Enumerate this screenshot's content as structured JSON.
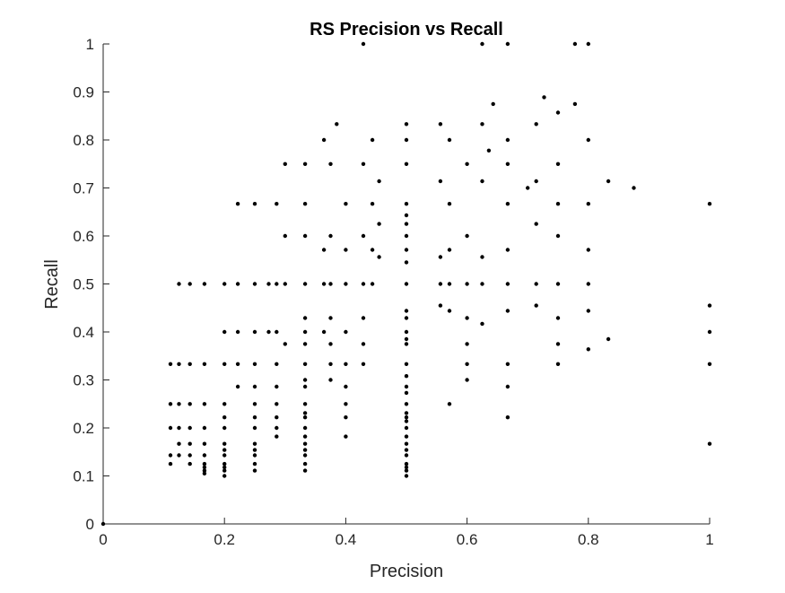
{
  "chart_data": {
    "type": "scatter",
    "title": "RS Precision vs Recall",
    "xlabel": "Precision",
    "ylabel": "Recall",
    "xlim": [
      0,
      1
    ],
    "ylim": [
      0,
      1
    ],
    "grid": false,
    "legend": "none",
    "marker_color": "#000000",
    "x_ticks": [
      0,
      0.2,
      0.4,
      0.6,
      0.8,
      1
    ],
    "x_tick_labels": [
      "0",
      "0.2",
      "0.4",
      "0.6",
      "0.8",
      "1"
    ],
    "y_ticks": [
      0,
      0.1,
      0.2,
      0.3,
      0.4,
      0.5,
      0.6,
      0.7,
      0.8,
      0.9,
      1
    ],
    "y_tick_labels": [
      "0",
      "0.1",
      "0.2",
      "0.3",
      "0.4",
      "0.5",
      "0.6",
      "0.7",
      "0.8",
      "0.9",
      "1"
    ],
    "points": [
      [
        0,
        0
      ],
      [
        0.429,
        1
      ],
      [
        0.625,
        1
      ],
      [
        0.667,
        1
      ],
      [
        0.778,
        1
      ],
      [
        0.8,
        1
      ],
      [
        0.727,
        0.889
      ],
      [
        0.643,
        0.875
      ],
      [
        0.778,
        0.875
      ],
      [
        0.75,
        0.857
      ],
      [
        0.385,
        0.833
      ],
      [
        0.5,
        0.833
      ],
      [
        0.556,
        0.833
      ],
      [
        0.625,
        0.833
      ],
      [
        0.714,
        0.833
      ],
      [
        0.364,
        0.8
      ],
      [
        0.444,
        0.8
      ],
      [
        0.5,
        0.8
      ],
      [
        0.571,
        0.8
      ],
      [
        0.667,
        0.8
      ],
      [
        0.8,
        0.8
      ],
      [
        0.636,
        0.778
      ],
      [
        0.3,
        0.75
      ],
      [
        0.333,
        0.75
      ],
      [
        0.375,
        0.75
      ],
      [
        0.429,
        0.75
      ],
      [
        0.5,
        0.75
      ],
      [
        0.6,
        0.75
      ],
      [
        0.667,
        0.75
      ],
      [
        0.75,
        0.75
      ],
      [
        0.455,
        0.714
      ],
      [
        0.556,
        0.714
      ],
      [
        0.625,
        0.714
      ],
      [
        0.714,
        0.714
      ],
      [
        0.833,
        0.714
      ],
      [
        0.875,
        0.7
      ],
      [
        0.7,
        0.7
      ],
      [
        0.222,
        0.667
      ],
      [
        0.25,
        0.667
      ],
      [
        0.286,
        0.667
      ],
      [
        0.333,
        0.667
      ],
      [
        0.4,
        0.667
      ],
      [
        0.444,
        0.667
      ],
      [
        0.5,
        0.667
      ],
      [
        0.571,
        0.667
      ],
      [
        0.667,
        0.667
      ],
      [
        0.75,
        0.667
      ],
      [
        0.8,
        0.667
      ],
      [
        1,
        0.667
      ],
      [
        0.5,
        0.643
      ],
      [
        0.714,
        0.625
      ],
      [
        0.455,
        0.625
      ],
      [
        0.5,
        0.625
      ],
      [
        0.3,
        0.6
      ],
      [
        0.333,
        0.6
      ],
      [
        0.375,
        0.6
      ],
      [
        0.429,
        0.6
      ],
      [
        0.5,
        0.6
      ],
      [
        0.6,
        0.6
      ],
      [
        0.75,
        0.6
      ],
      [
        0.364,
        0.571
      ],
      [
        0.4,
        0.571
      ],
      [
        0.444,
        0.571
      ],
      [
        0.5,
        0.571
      ],
      [
        0.571,
        0.571
      ],
      [
        0.667,
        0.571
      ],
      [
        0.8,
        0.571
      ],
      [
        0.455,
        0.556
      ],
      [
        0.556,
        0.556
      ],
      [
        0.625,
        0.556
      ],
      [
        0.5,
        0.545
      ],
      [
        0.125,
        0.5
      ],
      [
        0.143,
        0.5
      ],
      [
        0.167,
        0.5
      ],
      [
        0.2,
        0.5
      ],
      [
        0.222,
        0.5
      ],
      [
        0.25,
        0.5
      ],
      [
        0.273,
        0.5
      ],
      [
        0.286,
        0.5
      ],
      [
        0.3,
        0.5
      ],
      [
        0.333,
        0.5
      ],
      [
        0.364,
        0.5
      ],
      [
        0.375,
        0.5
      ],
      [
        0.4,
        0.5
      ],
      [
        0.429,
        0.5
      ],
      [
        0.444,
        0.5
      ],
      [
        0.5,
        0.5
      ],
      [
        0.556,
        0.5
      ],
      [
        0.571,
        0.5
      ],
      [
        0.6,
        0.5
      ],
      [
        0.625,
        0.5
      ],
      [
        0.667,
        0.5
      ],
      [
        0.714,
        0.5
      ],
      [
        0.75,
        0.5
      ],
      [
        0.8,
        0.5
      ],
      [
        0.556,
        0.455
      ],
      [
        0.714,
        0.455
      ],
      [
        0.8,
        0.444
      ],
      [
        1,
        0.455
      ],
      [
        0.5,
        0.444
      ],
      [
        0.571,
        0.444
      ],
      [
        0.667,
        0.444
      ],
      [
        0.333,
        0.429
      ],
      [
        0.375,
        0.429
      ],
      [
        0.429,
        0.429
      ],
      [
        0.5,
        0.429
      ],
      [
        0.6,
        0.429
      ],
      [
        0.75,
        0.429
      ],
      [
        0.625,
        0.417
      ],
      [
        0.2,
        0.4
      ],
      [
        0.222,
        0.4
      ],
      [
        0.25,
        0.4
      ],
      [
        0.273,
        0.4
      ],
      [
        0.286,
        0.4
      ],
      [
        0.333,
        0.4
      ],
      [
        0.364,
        0.4
      ],
      [
        0.4,
        0.4
      ],
      [
        0.5,
        0.4
      ],
      [
        1,
        0.4
      ],
      [
        0.5,
        0.385
      ],
      [
        0.833,
        0.385
      ],
      [
        0.3,
        0.375
      ],
      [
        0.333,
        0.375
      ],
      [
        0.375,
        0.375
      ],
      [
        0.429,
        0.375
      ],
      [
        0.5,
        0.375
      ],
      [
        0.6,
        0.375
      ],
      [
        0.75,
        0.375
      ],
      [
        0.8,
        0.364
      ],
      [
        0.111,
        0.333
      ],
      [
        0.125,
        0.333
      ],
      [
        0.143,
        0.333
      ],
      [
        0.167,
        0.333
      ],
      [
        0.2,
        0.333
      ],
      [
        0.222,
        0.333
      ],
      [
        0.25,
        0.333
      ],
      [
        0.286,
        0.333
      ],
      [
        0.333,
        0.333
      ],
      [
        0.375,
        0.333
      ],
      [
        0.4,
        0.333
      ],
      [
        0.429,
        0.333
      ],
      [
        0.5,
        0.333
      ],
      [
        0.6,
        0.333
      ],
      [
        0.667,
        0.333
      ],
      [
        0.75,
        0.333
      ],
      [
        1,
        0.333
      ],
      [
        0.5,
        0.308
      ],
      [
        0.6,
        0.3
      ],
      [
        0.375,
        0.3
      ],
      [
        0.333,
        0.3
      ],
      [
        0.222,
        0.286
      ],
      [
        0.25,
        0.286
      ],
      [
        0.286,
        0.286
      ],
      [
        0.333,
        0.286
      ],
      [
        0.4,
        0.286
      ],
      [
        0.5,
        0.286
      ],
      [
        0.667,
        0.286
      ],
      [
        0.5,
        0.273
      ],
      [
        0.111,
        0.25
      ],
      [
        0.125,
        0.25
      ],
      [
        0.143,
        0.25
      ],
      [
        0.167,
        0.25
      ],
      [
        0.2,
        0.25
      ],
      [
        0.25,
        0.25
      ],
      [
        0.286,
        0.25
      ],
      [
        0.333,
        0.25
      ],
      [
        0.4,
        0.25
      ],
      [
        0.5,
        0.25
      ],
      [
        0.571,
        0.25
      ],
      [
        0.667,
        0.222
      ],
      [
        0.333,
        0.231
      ],
      [
        0.5,
        0.231
      ],
      [
        0.2,
        0.222
      ],
      [
        0.25,
        0.222
      ],
      [
        0.286,
        0.222
      ],
      [
        0.333,
        0.222
      ],
      [
        0.4,
        0.222
      ],
      [
        0.5,
        0.222
      ],
      [
        0.5,
        0.214
      ],
      [
        0.111,
        0.2
      ],
      [
        0.125,
        0.2
      ],
      [
        0.143,
        0.2
      ],
      [
        0.167,
        0.2
      ],
      [
        0.2,
        0.2
      ],
      [
        0.25,
        0.2
      ],
      [
        0.286,
        0.2
      ],
      [
        0.333,
        0.2
      ],
      [
        0.5,
        0.2
      ],
      [
        0.333,
        0.182
      ],
      [
        0.4,
        0.182
      ],
      [
        0.286,
        0.182
      ],
      [
        0.5,
        0.182
      ],
      [
        0.125,
        0.167
      ],
      [
        0.143,
        0.167
      ],
      [
        0.167,
        0.167
      ],
      [
        0.2,
        0.167
      ],
      [
        0.25,
        0.167
      ],
      [
        0.333,
        0.167
      ],
      [
        0.5,
        0.167
      ],
      [
        1,
        0.167
      ],
      [
        0.5,
        0.154
      ],
      [
        0.333,
        0.154
      ],
      [
        0.25,
        0.154
      ],
      [
        0.2,
        0.154
      ],
      [
        0.111,
        0.143
      ],
      [
        0.125,
        0.143
      ],
      [
        0.143,
        0.143
      ],
      [
        0.167,
        0.143
      ],
      [
        0.2,
        0.143
      ],
      [
        0.25,
        0.143
      ],
      [
        0.333,
        0.143
      ],
      [
        0.5,
        0.143
      ],
      [
        0.111,
        0.125
      ],
      [
        0.143,
        0.125
      ],
      [
        0.167,
        0.125
      ],
      [
        0.2,
        0.125
      ],
      [
        0.25,
        0.125
      ],
      [
        0.333,
        0.125
      ],
      [
        0.5,
        0.125
      ],
      [
        0.167,
        0.118
      ],
      [
        0.2,
        0.118
      ],
      [
        0.5,
        0.118
      ],
      [
        0.167,
        0.111
      ],
      [
        0.2,
        0.111
      ],
      [
        0.25,
        0.111
      ],
      [
        0.333,
        0.111
      ],
      [
        0.5,
        0.111
      ],
      [
        0.167,
        0.105
      ],
      [
        0.2,
        0.1
      ],
      [
        0.5,
        0.1
      ]
    ]
  }
}
